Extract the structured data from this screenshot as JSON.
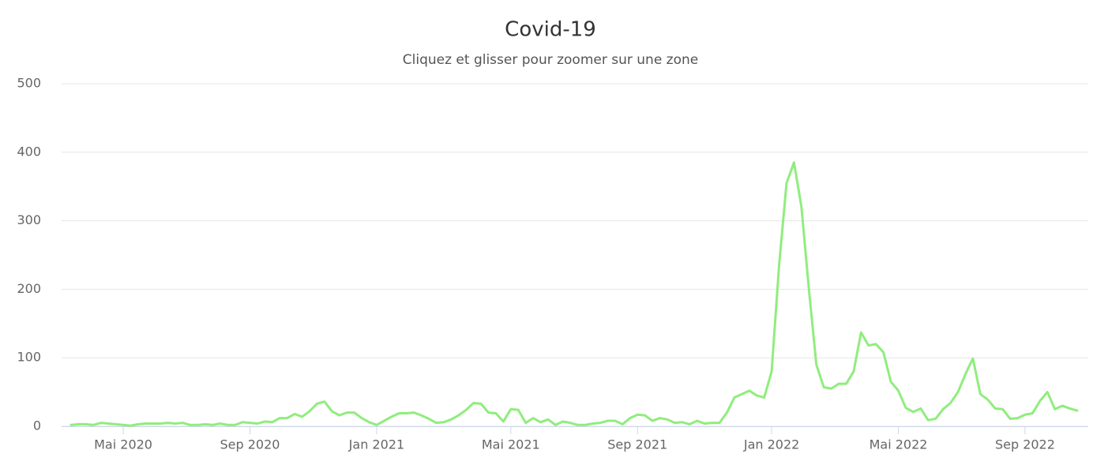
{
  "chart_data": {
    "type": "line",
    "title": "Covid-19",
    "subtitle": "Cliquez et glisser pour zoomer sur une zone",
    "categories": [
      null,
      null,
      null,
      null,
      null,
      null,
      null,
      "Mai 2020",
      null,
      null,
      null,
      null,
      null,
      null,
      null,
      null,
      null,
      null,
      null,
      null,
      null,
      null,
      null,
      null,
      "Sep 2020",
      null,
      null,
      null,
      null,
      null,
      null,
      null,
      null,
      null,
      null,
      null,
      null,
      null,
      null,
      null,
      null,
      "Jan 2021",
      null,
      null,
      null,
      null,
      null,
      null,
      null,
      null,
      null,
      null,
      null,
      null,
      null,
      null,
      null,
      null,
      null,
      "Mai 2021",
      null,
      null,
      null,
      null,
      null,
      null,
      null,
      null,
      null,
      null,
      null,
      null,
      null,
      null,
      null,
      null,
      "Sep 2021",
      null,
      null,
      null,
      null,
      null,
      null,
      null,
      null,
      null,
      null,
      null,
      null,
      null,
      null,
      null,
      null,
      null,
      "Jan 2022",
      null,
      null,
      null,
      null,
      null,
      null,
      null,
      null,
      null,
      null,
      null,
      null,
      null,
      null,
      null,
      null,
      "Mai 2022",
      null,
      null,
      null,
      null,
      null,
      null,
      null,
      null,
      null,
      null,
      null,
      null,
      null,
      null,
      null,
      null,
      "Sep 2022",
      null,
      null,
      null,
      null,
      null,
      null,
      null
    ],
    "values": [
      2,
      3,
      3,
      2,
      5,
      4,
      3,
      2,
      1,
      3,
      4,
      4,
      4,
      5,
      4,
      5,
      2,
      2,
      3,
      2,
      4,
      2,
      2,
      6,
      5,
      4,
      7,
      6,
      12,
      12,
      18,
      14,
      22,
      33,
      36,
      22,
      16,
      20,
      20,
      12,
      6,
      2,
      8,
      14,
      19,
      19,
      20,
      16,
      11,
      5,
      6,
      10,
      16,
      24,
      34,
      33,
      20,
      19,
      7,
      25,
      24,
      5,
      12,
      6,
      10,
      2,
      7,
      5,
      2,
      2,
      4,
      5,
      8,
      8,
      3,
      12,
      17,
      16,
      8,
      12,
      10,
      5,
      6,
      3,
      8,
      4,
      5,
      5,
      20,
      42,
      47,
      52,
      45,
      42,
      80,
      235,
      355,
      385,
      320,
      200,
      90,
      57,
      55,
      62,
      62,
      80,
      137,
      118,
      120,
      108,
      65,
      52,
      27,
      21,
      26,
      9,
      11,
      25,
      34,
      50,
      76,
      99,
      47,
      39,
      26,
      25,
      11,
      12,
      17,
      19,
      37,
      50,
      25,
      30,
      26,
      23
    ],
    "color": "#90ed7d",
    "ylim": [
      0,
      500
    ],
    "yticks": [
      0,
      100,
      200,
      300,
      400,
      500
    ],
    "grid": true
  }
}
